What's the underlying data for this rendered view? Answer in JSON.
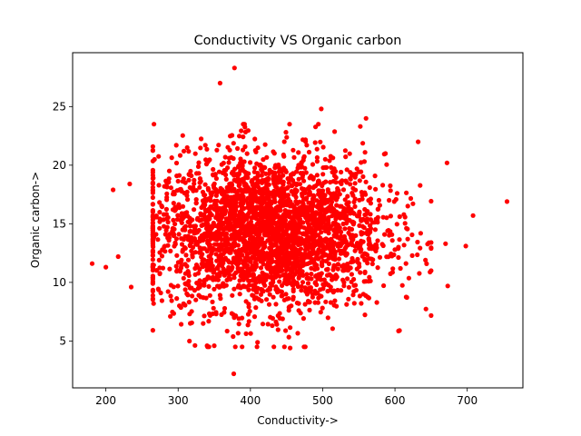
{
  "chart_data": {
    "type": "scatter",
    "title": "Conductivity VS Organic carbon",
    "xlabel": "Conductivity->",
    "ylabel": "Organic carbon->",
    "xlim": [
      154,
      777
    ],
    "ylim": [
      1.0,
      29.6
    ],
    "x_ticks": [
      200,
      300,
      400,
      500,
      600,
      700
    ],
    "y_ticks": [
      5,
      10,
      15,
      20,
      25
    ],
    "grid": false,
    "legend": "none",
    "marker_color": "#ff0000",
    "marker_shape": "circle",
    "point_count_approx": 3000,
    "notable_points": [
      [
        181,
        11.6
      ],
      [
        200,
        11.3
      ],
      [
        210,
        17.9
      ],
      [
        217,
        12.2
      ],
      [
        233,
        18.4
      ],
      [
        235,
        9.6
      ],
      [
        358,
        27.0
      ],
      [
        378,
        28.3
      ],
      [
        377,
        2.2
      ],
      [
        498,
        24.8
      ],
      [
        560,
        24.0
      ],
      [
        632,
        22.0
      ],
      [
        672,
        20.2
      ],
      [
        670,
        13.3
      ],
      [
        673,
        9.7
      ],
      [
        698,
        13.1
      ],
      [
        708,
        15.7
      ],
      [
        755,
        16.9
      ],
      [
        340,
        4.6
      ],
      [
        350,
        4.6
      ],
      [
        447,
        4.5
      ],
      [
        455,
        4.4
      ]
    ],
    "distribution": {
      "x_mean": 425,
      "x_sd": 80,
      "y_mean": 14.3,
      "y_sd": 3.3
    }
  }
}
